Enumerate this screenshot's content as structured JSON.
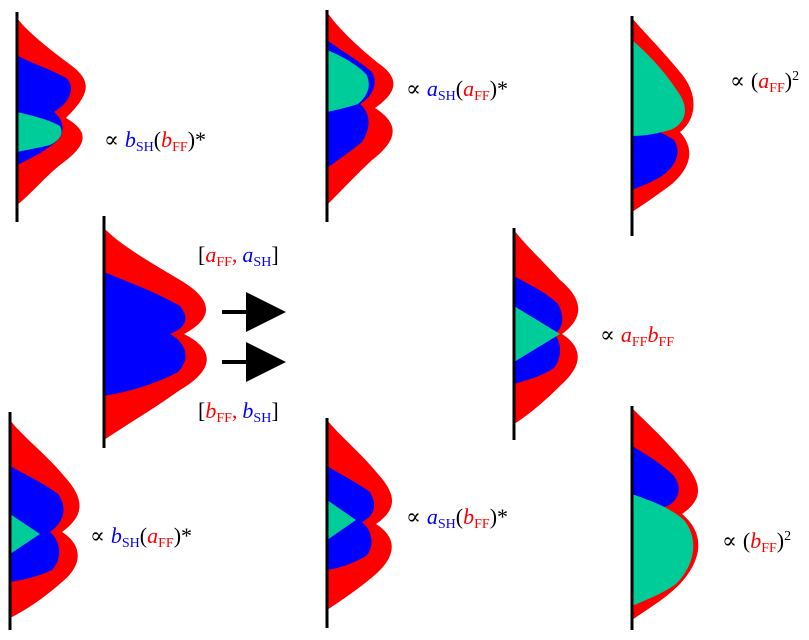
{
  "colors": {
    "red": "#ff0000",
    "blue": "#0000ff",
    "green": "#00cc99",
    "black": "#000000"
  },
  "symbols": {
    "prop": "∝",
    "lparen": "(",
    "rparen": ")",
    "star": "*",
    "lbracket": "[",
    "rbracket": "]",
    "comma": ",",
    "sq": "2"
  },
  "vars": {
    "a": "a",
    "b": "b",
    "ff": "FF",
    "sh": "SH"
  },
  "arrows": [
    {
      "name": "arrow-a"
    },
    {
      "name": "arrow-b"
    }
  ]
}
